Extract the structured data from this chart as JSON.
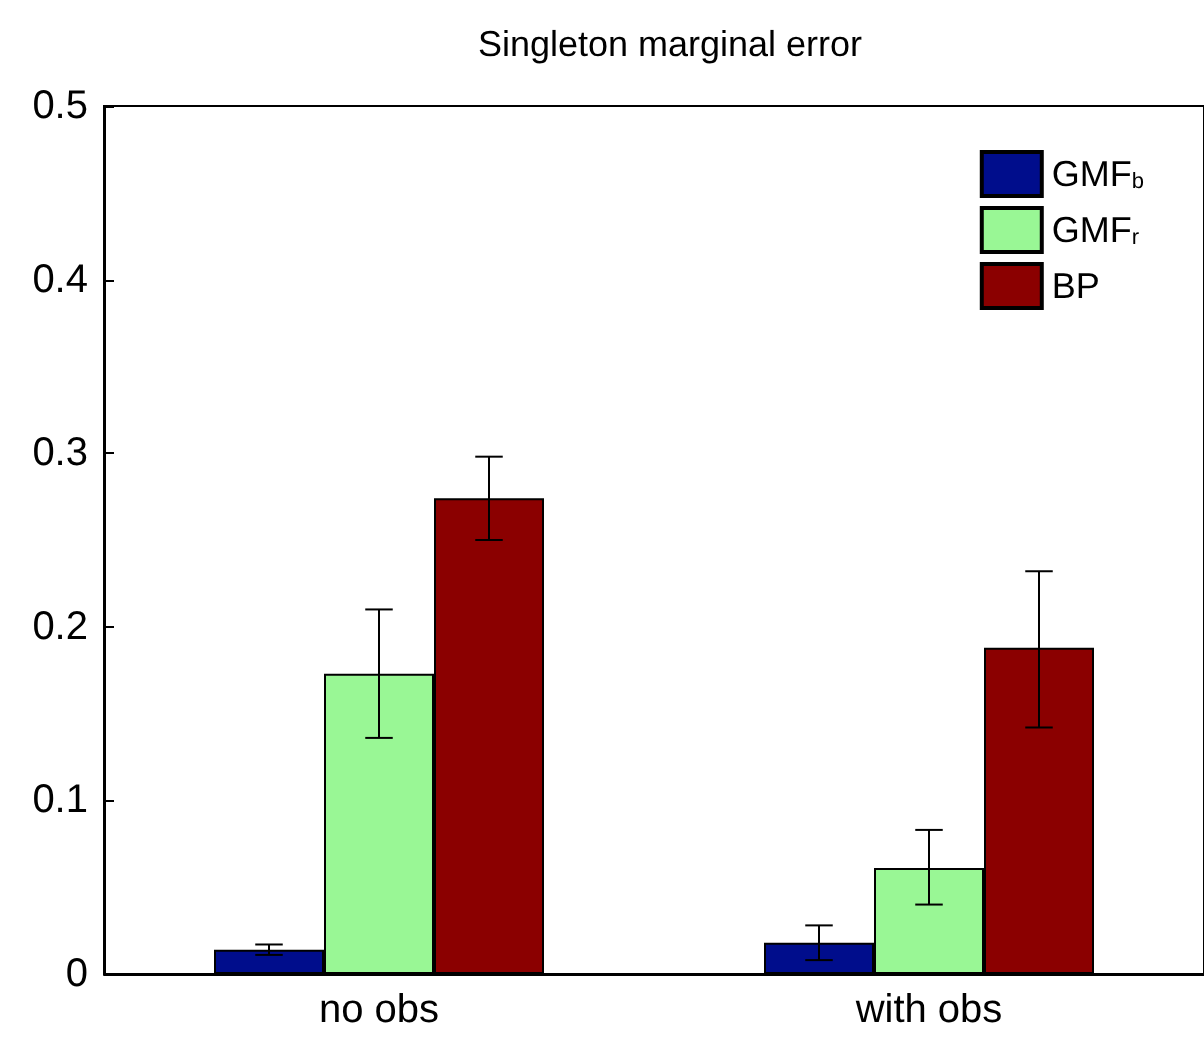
{
  "chart_data": {
    "type": "bar",
    "title": "Singleton marginal error",
    "categories": [
      "no obs",
      "with obs"
    ],
    "series": [
      {
        "name": "GMF$_{b}$",
        "color": "#000d8c",
        "values": [
          0.014,
          0.018
        ],
        "errors": [
          [
            0.011,
            0.017
          ],
          [
            0.008,
            0.028
          ]
        ]
      },
      {
        "name": "GMF$_{r}$",
        "color": "#99f795",
        "values": [
          0.173,
          0.061
        ],
        "errors": [
          [
            0.136,
            0.21
          ],
          [
            0.04,
            0.083
          ]
        ]
      },
      {
        "name": "BP",
        "color": "#8b0000",
        "values": [
          0.274,
          0.188
        ],
        "errors": [
          [
            0.25,
            0.298
          ],
          [
            0.142,
            0.232
          ]
        ]
      }
    ],
    "ylim": [
      0,
      0.5
    ],
    "yticks": [
      0,
      0.1,
      0.2,
      0.3,
      0.4,
      0.5
    ],
    "grid": false,
    "legend": "top right"
  }
}
